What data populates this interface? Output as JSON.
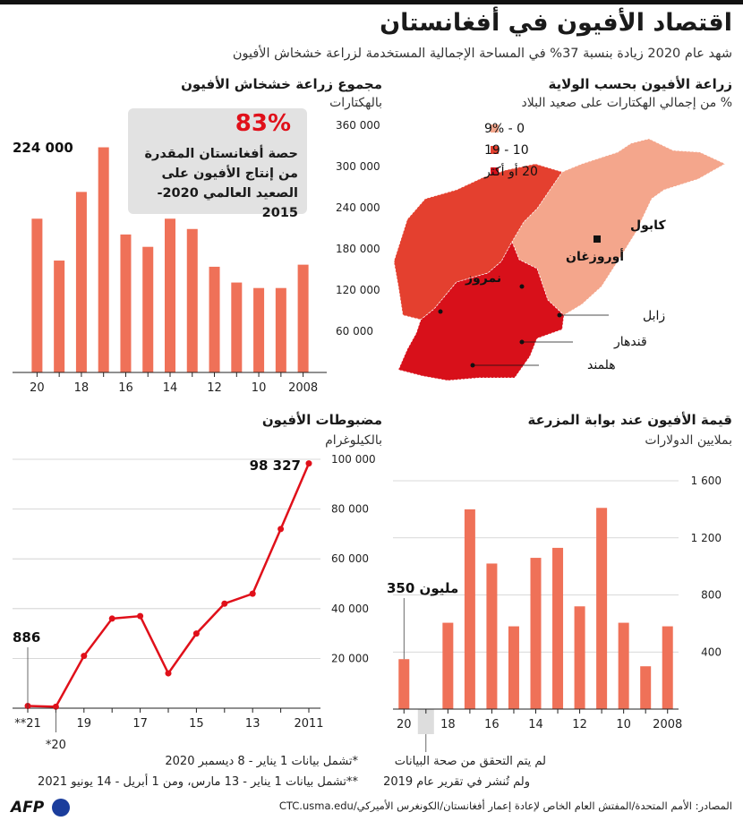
{
  "header": {
    "title": "اقتصاد الأفيون في أفغانستان",
    "subtitle": "شهد عام 2020 زيادة بنسبة 37% في المساحة الإجمالية المستخدمة لزراعة خشخاش الأفيون"
  },
  "map_panel": {
    "title": "زراعة الأفيون بحسب الولاية",
    "subtitle": "% من إجمالي الهكتارات على صعيد البلاد",
    "legend": [
      {
        "label": "0 - 9%",
        "color": "#f4a68c"
      },
      {
        "label": "10 - 19",
        "color": "#e4402f"
      },
      {
        "label": "20 أو أكثر",
        "color": "#d8101a"
      }
    ],
    "labels": {
      "kabul": "كابول",
      "uruzgan": "أوروزغان",
      "nimroz": "نمروز",
      "zabul": "زابل",
      "kandahar": "قندهار",
      "helmand": "هلمند"
    }
  },
  "info_box": {
    "value": "83%",
    "text": "حصة أفغانستان المقدرة من إنتاج الأفيون على الصعيد العالمي 2020-2015"
  },
  "notes": {
    "note1": "*تشمل بيانات 1 يناير - 8 ديسمبر 2020",
    "note2": "**تشمل بيانات 1 يناير - 13 مارس، ومن 1 أبريل - 14 يونيو 2021",
    "gap_line1": "لم يتم التحقق من صحة البيانات",
    "gap_line2": "ولم تُنشر في تقرير عام 2019"
  },
  "footer": {
    "logo": "AFP",
    "source": "المصادر: الأمم المتحدة/المفتش العام الخاص لإعادة إعمار أفغانستان/الكونغرس الأميركي/CTC.usma.edu"
  },
  "colors": {
    "bar": "#ef7158",
    "line": "#e0101a",
    "accent": "#e0101a",
    "grid": "#cccccc"
  },
  "chart_data": [
    {
      "type": "bar",
      "title": "مجموع زراعة خشخاش الأفيون",
      "ylabel": "بالهكتارات",
      "categories": [
        "2020",
        "2019",
        "2018",
        "2017",
        "2016",
        "2015",
        "2014",
        "2013",
        "2012",
        "2011",
        "2010",
        "2009",
        "2008"
      ],
      "x_tick_labels": [
        "20",
        "",
        "18",
        "",
        "16",
        "",
        "14",
        "",
        "12",
        "",
        "10",
        "",
        "2008"
      ],
      "values": [
        224000,
        163000,
        263000,
        328000,
        201000,
        183000,
        224000,
        209000,
        154000,
        131000,
        123000,
        123000,
        157000
      ],
      "ylim": [
        0,
        370000
      ],
      "yticks": [
        60000,
        120000,
        180000,
        240000,
        300000,
        360000
      ],
      "ytick_labels": [
        "60 000",
        "120 000",
        "180 000",
        "240 000",
        "300 000",
        "360 000"
      ],
      "callout": "224 000",
      "grid": false
    },
    {
      "type": "line",
      "title": "مضبوطات الأفيون",
      "ylabel": "بالكيلوغرام",
      "categories": [
        "2021**",
        "2020*",
        "2019",
        "2018",
        "2017",
        "2016",
        "2015",
        "2014",
        "2013",
        "2012",
        "2011"
      ],
      "x_tick_labels": [
        "**21",
        "*20",
        "19",
        "",
        "17",
        "",
        "15",
        "",
        "13",
        "",
        "2011"
      ],
      "values": [
        886,
        600,
        21000,
        36000,
        37000,
        14000,
        30000,
        42000,
        46000,
        72000,
        98327
      ],
      "ylim": [
        0,
        100000
      ],
      "yticks": [
        20000,
        40000,
        60000,
        80000,
        100000
      ],
      "ytick_labels": [
        "20 000",
        "40 000",
        "60 000",
        "80 000",
        "100 000"
      ],
      "callouts": {
        "first": "886",
        "last": "98 327"
      },
      "grid": true
    },
    {
      "type": "bar",
      "title": "قيمة الأفيون عند بوابة المزرعة",
      "ylabel": "بملايين الدولارات",
      "categories": [
        "2020",
        "2019",
        "2018",
        "2017",
        "2016",
        "2015",
        "2014",
        "2013",
        "2012",
        "2011",
        "2010",
        "2009",
        "2008"
      ],
      "x_tick_labels": [
        "20",
        "",
        "18",
        "",
        "16",
        "",
        "14",
        "",
        "12",
        "",
        "10",
        "",
        "2008"
      ],
      "values": [
        350,
        null,
        605,
        1400,
        1020,
        580,
        1060,
        1130,
        720,
        1410,
        605,
        300,
        580
      ],
      "ylim": [
        0,
        1700
      ],
      "yticks": [
        400,
        800,
        1200,
        1600
      ],
      "ytick_labels": [
        "400",
        "800",
        "1 200",
        "1 600"
      ],
      "callout": "350 مليون",
      "grid": true
    }
  ]
}
